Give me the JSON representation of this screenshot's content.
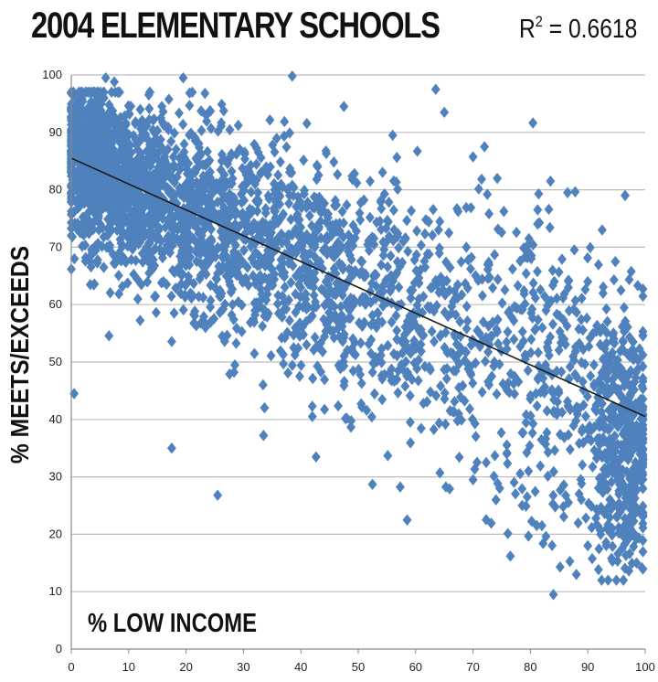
{
  "chart_data": {
    "type": "scatter",
    "title": "2004 ELEMENTARY SCHOOLS",
    "annotation_r2": "= 0.6618",
    "annotation_r2_label": "R",
    "annotation_r2_sup": "2",
    "xlabel": "% LOW INCOME",
    "ylabel": "% MEETS/EXCEEDS",
    "xlim": [
      0,
      100
    ],
    "ylim": [
      0,
      100
    ],
    "x_ticks": [
      "0",
      "10",
      "20",
      "30",
      "40",
      "50",
      "60",
      "70",
      "80",
      "90",
      "100"
    ],
    "y_ticks": [
      "0",
      "10",
      "20",
      "30",
      "40",
      "50",
      "60",
      "70",
      "80",
      "90",
      "100"
    ],
    "grid": "horizontal",
    "marker": "diamond",
    "point_color": "#4f81bd",
    "trendline": {
      "x": [
        0,
        100
      ],
      "y": [
        85.5,
        40.5
      ],
      "color": "#1a1a1a"
    },
    "outliers": [
      {
        "x": 0.5,
        "y": 44.5
      },
      {
        "x": 6,
        "y": 99.5
      },
      {
        "x": 7.5,
        "y": 98.8
      },
      {
        "x": 19.5,
        "y": 99.5
      },
      {
        "x": 38.5,
        "y": 99.8
      },
      {
        "x": 63.5,
        "y": 97.5
      },
      {
        "x": 65,
        "y": 93.5
      },
      {
        "x": 17.5,
        "y": 35
      },
      {
        "x": 25.5,
        "y": 26.8
      },
      {
        "x": 33.5,
        "y": 37.2
      },
      {
        "x": 28.5,
        "y": 49.5
      },
      {
        "x": 84,
        "y": 9.5
      },
      {
        "x": 88,
        "y": 13
      },
      {
        "x": 76.5,
        "y": 16.2
      },
      {
        "x": 83.5,
        "y": 81.5
      },
      {
        "x": 72,
        "y": 87.5
      },
      {
        "x": 96.5,
        "y": 79
      },
      {
        "x": 92.5,
        "y": 73
      },
      {
        "x": 56,
        "y": 89.5
      },
      {
        "x": 47.5,
        "y": 94.5
      },
      {
        "x": 42,
        "y": 40.5
      },
      {
        "x": 48,
        "y": 40.2
      },
      {
        "x": 66,
        "y": 41.5
      },
      {
        "x": 98.5,
        "y": 15
      },
      {
        "x": 70,
        "y": 29.5
      },
      {
        "x": 74,
        "y": 26
      },
      {
        "x": 82,
        "y": 21.5
      },
      {
        "x": 90,
        "y": 18
      }
    ],
    "clusters": [
      {
        "cx": 3,
        "cy": 86,
        "sx": 2.5,
        "sy": 6,
        "n": 650
      },
      {
        "cx": 10,
        "cy": 80,
        "sx": 4.5,
        "sy": 7,
        "n": 500
      },
      {
        "cx": 20,
        "cy": 76,
        "sx": 6,
        "sy": 8,
        "n": 480
      },
      {
        "cx": 32,
        "cy": 71,
        "sx": 7,
        "sy": 8.5,
        "n": 380
      },
      {
        "cx": 45,
        "cy": 65,
        "sx": 7,
        "sy": 9.5,
        "n": 300
      },
      {
        "cx": 58,
        "cy": 58,
        "sx": 7,
        "sy": 10.5,
        "n": 240
      },
      {
        "cx": 72,
        "cy": 52,
        "sx": 7,
        "sy": 12,
        "n": 190
      },
      {
        "cx": 86,
        "cy": 46,
        "sx": 6,
        "sy": 14,
        "n": 230
      },
      {
        "cx": 96,
        "cy": 36,
        "sx": 3,
        "sy": 11,
        "n": 420
      }
    ]
  }
}
